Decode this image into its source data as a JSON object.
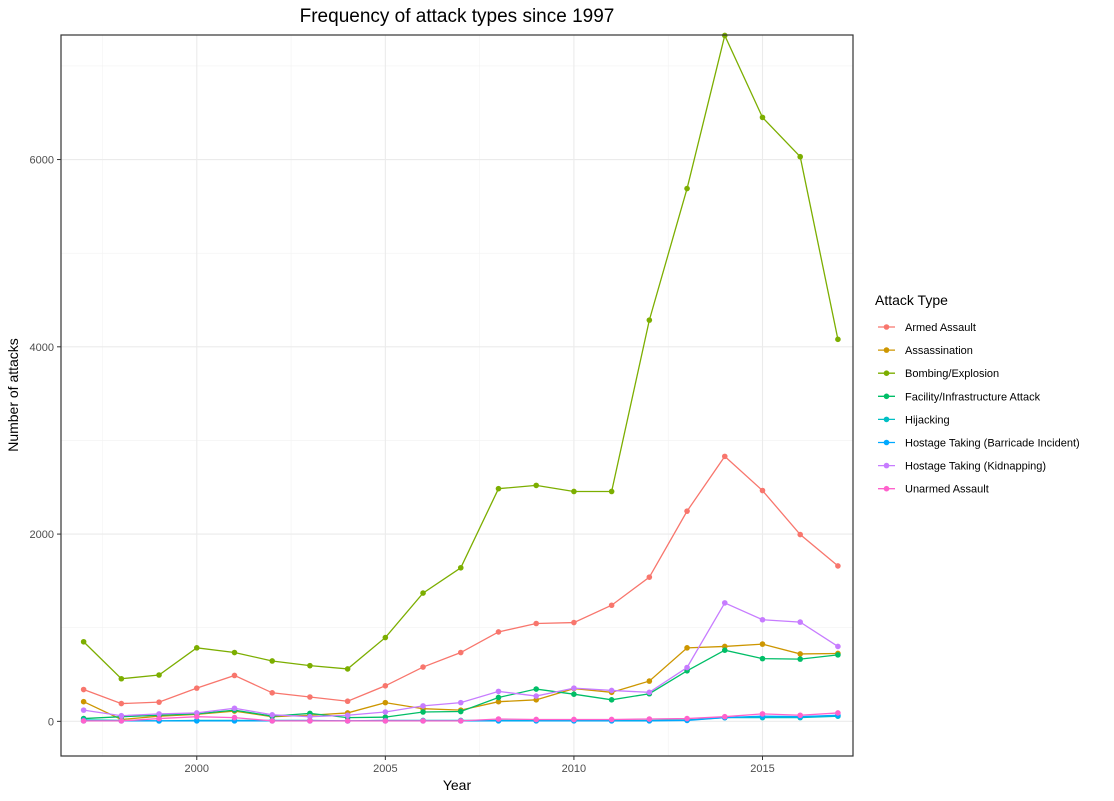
{
  "chart_data": {
    "type": "line",
    "title": "Frequency of attack types since 1997",
    "xlabel": "Year",
    "ylabel": "Number of attacks",
    "xlim": [
      1996.4,
      2017.4
    ],
    "ylim": [
      -370,
      7330
    ],
    "x_ticks": [
      2000,
      2005,
      2010,
      2015
    ],
    "y_ticks": [
      0,
      2000,
      4000,
      6000
    ],
    "grid": true,
    "legend_title": "Attack Type",
    "legend_position": "right",
    "x": [
      1997,
      1998,
      1999,
      2000,
      2001,
      2002,
      2003,
      2004,
      2005,
      2006,
      2007,
      2008,
      2009,
      2010,
      2011,
      2012,
      2013,
      2014,
      2015,
      2016,
      2017
    ],
    "series": [
      {
        "name": "Armed Assault",
        "color": "#F8766D",
        "values": [
          340,
          190,
          205,
          355,
          490,
          305,
          260,
          215,
          380,
          580,
          735,
          955,
          1045,
          1055,
          1240,
          1540,
          2245,
          2830,
          2465,
          1995,
          1660
        ]
      },
      {
        "name": "Assassination",
        "color": "#CD9600",
        "values": [
          210,
          20,
          55,
          75,
          110,
          50,
          65,
          90,
          200,
          135,
          120,
          210,
          230,
          350,
          310,
          430,
          785,
          800,
          825,
          720,
          725
        ]
      },
      {
        "name": "Bombing/Explosion",
        "color": "#7CAE00",
        "values": [
          850,
          455,
          495,
          785,
          735,
          645,
          595,
          560,
          895,
          1370,
          1640,
          2485,
          2520,
          2455,
          2455,
          4285,
          5690,
          7325,
          6450,
          6030,
          4080
        ]
      },
      {
        "name": "Facility/Infrastructure Attack",
        "color": "#00BE67",
        "values": [
          30,
          50,
          65,
          80,
          120,
          55,
          85,
          40,
          45,
          100,
          105,
          255,
          345,
          290,
          230,
          295,
          540,
          760,
          670,
          665,
          710
        ]
      },
      {
        "name": "Hijacking",
        "color": "#00BFC4",
        "values": [
          15,
          10,
          5,
          10,
          10,
          10,
          10,
          5,
          10,
          10,
          10,
          10,
          10,
          10,
          10,
          10,
          15,
          40,
          40,
          40,
          55
        ]
      },
      {
        "name": "Hostage Taking (Barricade Incident)",
        "color": "#00A9FF",
        "values": [
          5,
          5,
          5,
          5,
          5,
          5,
          5,
          5,
          5,
          5,
          5,
          5,
          5,
          5,
          5,
          5,
          10,
          40,
          55,
          50,
          65
        ]
      },
      {
        "name": "Hostage Taking (Kidnapping)",
        "color": "#C77CFF",
        "values": [
          120,
          60,
          80,
          90,
          140,
          70,
          50,
          65,
          100,
          165,
          200,
          320,
          270,
          355,
          330,
          310,
          575,
          1265,
          1085,
          1060,
          800
        ]
      },
      {
        "name": "Unarmed Assault",
        "color": "#FF61CC",
        "values": [
          5,
          5,
          30,
          50,
          40,
          5,
          5,
          5,
          5,
          5,
          5,
          25,
          20,
          20,
          20,
          25,
          30,
          50,
          80,
          65,
          90
        ]
      }
    ]
  }
}
